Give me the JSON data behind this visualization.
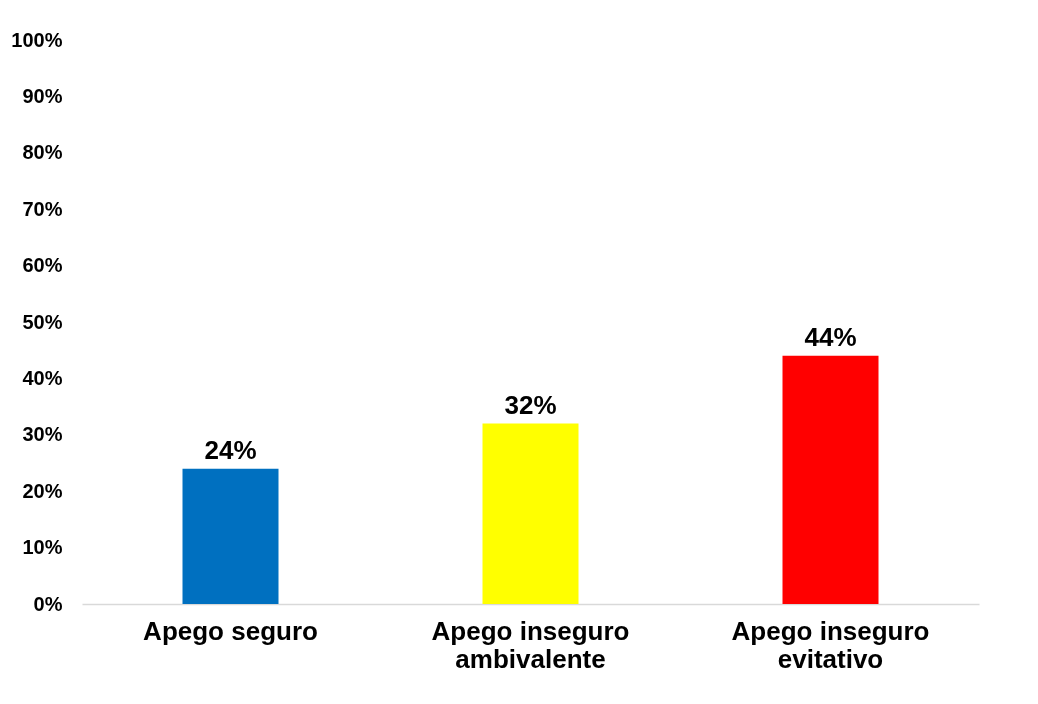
{
  "chart_data": {
    "type": "bar",
    "categories": [
      "Apego seguro",
      "Apego inseguro ambivalente",
      "Apego inseguro evitativo"
    ],
    "values": [
      24,
      32,
      44
    ],
    "colors": [
      "#0070c0",
      "#ffff00",
      "#ff0000"
    ],
    "value_labels": [
      "24%",
      "32%",
      "44%"
    ],
    "ylim": [
      0,
      100
    ],
    "yticks": [
      {
        "value": 0,
        "label": "0%"
      },
      {
        "value": 10,
        "label": "10%"
      },
      {
        "value": 20,
        "label": "20%"
      },
      {
        "value": 30,
        "label": "30%"
      },
      {
        "value": 40,
        "label": "40%"
      },
      {
        "value": 50,
        "label": "50%"
      },
      {
        "value": 60,
        "label": "60%"
      },
      {
        "value": 70,
        "label": "70%"
      },
      {
        "value": 80,
        "label": "80%"
      },
      {
        "value": 90,
        "label": "90%"
      },
      {
        "value": 100,
        "label": "100%"
      }
    ],
    "grid": false
  }
}
